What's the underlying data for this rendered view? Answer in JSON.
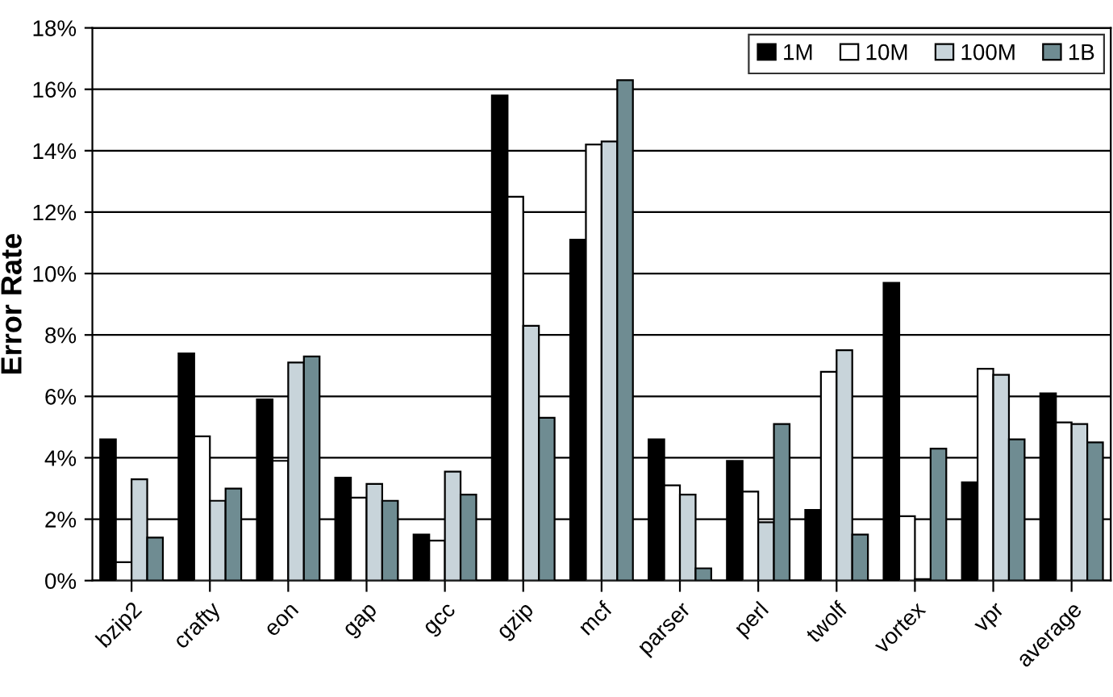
{
  "chart_data": {
    "type": "bar",
    "ylabel": "Error Rate",
    "categories": [
      "bzip2",
      "crafty",
      "eon",
      "gap",
      "gcc",
      "gzip",
      "mcf",
      "parser",
      "perl",
      "twolf",
      "vortex",
      "vpr",
      "average"
    ],
    "series": [
      {
        "name": "1M",
        "color": "#000000",
        "values": [
          4.6,
          7.4,
          5.9,
          3.35,
          1.5,
          15.8,
          11.1,
          4.6,
          3.9,
          2.3,
          9.7,
          3.2,
          6.1
        ]
      },
      {
        "name": "10M",
        "color": "#ffffff",
        "values": [
          0.6,
          4.7,
          3.9,
          2.7,
          1.3,
          12.5,
          14.2,
          3.1,
          2.9,
          6.8,
          2.1,
          6.9,
          5.15
        ]
      },
      {
        "name": "100M",
        "color": "#c8d4da",
        "values": [
          3.3,
          2.6,
          7.1,
          3.15,
          3.55,
          8.3,
          14.3,
          2.8,
          1.9,
          7.5,
          0.05,
          6.7,
          5.1
        ]
      },
      {
        "name": "1B",
        "color": "#6f8c92",
        "values": [
          1.4,
          3.0,
          7.3,
          2.6,
          2.8,
          5.3,
          16.3,
          0.4,
          5.1,
          1.5,
          4.3,
          4.6,
          4.5
        ]
      }
    ],
    "ylim": [
      0,
      18
    ],
    "yticks": [
      {
        "value": 0,
        "label": "0%"
      },
      {
        "value": 2,
        "label": "2%"
      },
      {
        "value": 4,
        "label": "4%"
      },
      {
        "value": 6,
        "label": "6%"
      },
      {
        "value": 8,
        "label": "8%"
      },
      {
        "value": 10,
        "label": "10%"
      },
      {
        "value": 12,
        "label": "12%"
      },
      {
        "value": 14,
        "label": "14%"
      },
      {
        "value": 16,
        "label": "16%"
      },
      {
        "value": 18,
        "label": "18%"
      }
    ],
    "grid": "y",
    "legend": "top right"
  }
}
